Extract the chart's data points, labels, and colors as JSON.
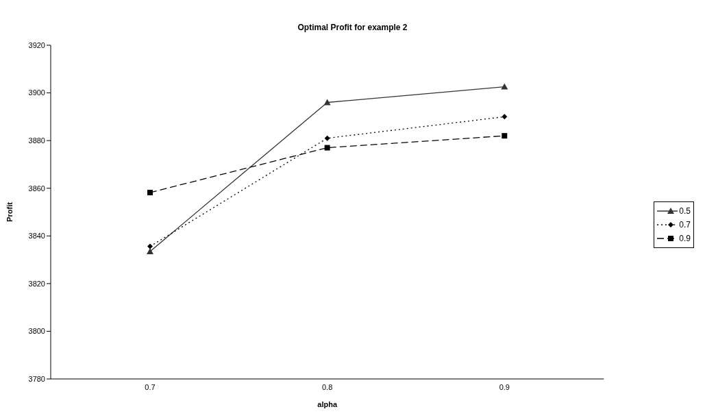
{
  "chart_data": {
    "type": "line",
    "title": "Optimal Profit for example 2",
    "xlabel": "alpha",
    "ylabel": "Profit",
    "categories": [
      "0.7",
      "0.8",
      "0.9"
    ],
    "series": [
      {
        "name": "0.5",
        "color": "#333333",
        "marker": "triangle",
        "line_style": "solid",
        "values": [
          3833.5,
          3896,
          3902.6
        ]
      },
      {
        "name": "0.7",
        "color": "#000000",
        "marker": "diamond",
        "line_style": "dotted",
        "values": [
          3835.6,
          3881,
          3890
        ]
      },
      {
        "name": "0.9",
        "color": "#000000",
        "marker": "square",
        "line_style": "dashed",
        "values": [
          3858.2,
          3877,
          3882
        ]
      }
    ],
    "ylim": [
      3780,
      3920
    ],
    "yticks": [
      3780,
      3800,
      3820,
      3840,
      3860,
      3880,
      3900,
      3920
    ],
    "grid": false,
    "legend": "right"
  }
}
